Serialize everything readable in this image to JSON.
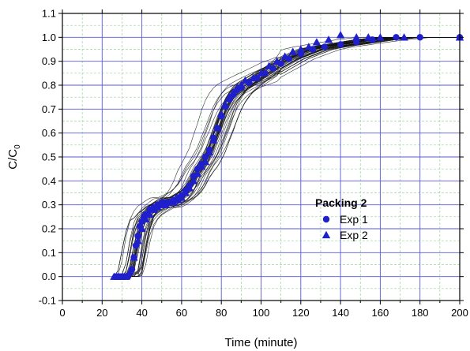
{
  "chart_data": {
    "type": "scatter",
    "title": "",
    "xlabel": "Time (minute)",
    "ylabel_main": "C/C",
    "ylabel_sub": "0",
    "xlim": [
      0,
      200
    ],
    "ylim": [
      -0.1,
      1.1
    ],
    "x_ticks": [
      "0",
      "20",
      "40",
      "60",
      "80",
      "100",
      "120",
      "140",
      "160",
      "180",
      "200"
    ],
    "y_ticks": [
      "-0.1",
      "0.0",
      "0.1",
      "0.2",
      "0.3",
      "0.4",
      "0.5",
      "0.6",
      "0.7",
      "0.8",
      "0.9",
      "1.0",
      "1.1"
    ],
    "grid": true,
    "legend_placement": "center-right",
    "legend_title": "Packing 2",
    "colors": {
      "markers": "#1f1fcc",
      "major_grid": "#5a5ad6",
      "minor_grid": "#9ecf9e",
      "simulations": "#111111"
    },
    "series": [
      {
        "name": "Exp 1",
        "marker": "circle",
        "points": [
          [
            27,
            0.0
          ],
          [
            29,
            0.0
          ],
          [
            31,
            0.0
          ],
          [
            33,
            0.0
          ],
          [
            35,
            0.03
          ],
          [
            36,
            0.08
          ],
          [
            37,
            0.13
          ],
          [
            38,
            0.17
          ],
          [
            39,
            0.21
          ],
          [
            40,
            0.23
          ],
          [
            41,
            0.25
          ],
          [
            42,
            0.26
          ],
          [
            44,
            0.28
          ],
          [
            46,
            0.29
          ],
          [
            48,
            0.3
          ],
          [
            50,
            0.31
          ],
          [
            52,
            0.31
          ],
          [
            54,
            0.31
          ],
          [
            56,
            0.32
          ],
          [
            58,
            0.33
          ],
          [
            60,
            0.34
          ],
          [
            62,
            0.36
          ],
          [
            64,
            0.38
          ],
          [
            66,
            0.42
          ],
          [
            68,
            0.45
          ],
          [
            70,
            0.47
          ],
          [
            72,
            0.5
          ],
          [
            74,
            0.53
          ],
          [
            76,
            0.58
          ],
          [
            78,
            0.62
          ],
          [
            80,
            0.67
          ],
          [
            82,
            0.71
          ],
          [
            84,
            0.74
          ],
          [
            86,
            0.76
          ],
          [
            88,
            0.78
          ],
          [
            90,
            0.79
          ],
          [
            94,
            0.81
          ],
          [
            98,
            0.83
          ],
          [
            102,
            0.85
          ],
          [
            106,
            0.87
          ],
          [
            110,
            0.89
          ],
          [
            114,
            0.91
          ],
          [
            120,
            0.93
          ],
          [
            126,
            0.95
          ],
          [
            132,
            0.96
          ],
          [
            140,
            0.97
          ],
          [
            148,
            0.98
          ],
          [
            156,
            0.99
          ],
          [
            168,
            1.0
          ],
          [
            180,
            1.0
          ],
          [
            200,
            1.0
          ]
        ]
      },
      {
        "name": "Exp 2",
        "marker": "triangle",
        "points": [
          [
            26,
            0.0
          ],
          [
            28,
            0.0
          ],
          [
            30,
            0.0
          ],
          [
            32,
            0.0
          ],
          [
            34,
            0.02
          ],
          [
            36,
            0.08
          ],
          [
            38,
            0.15
          ],
          [
            40,
            0.2
          ],
          [
            42,
            0.24
          ],
          [
            44,
            0.26
          ],
          [
            46,
            0.28
          ],
          [
            48,
            0.29
          ],
          [
            50,
            0.3
          ],
          [
            52,
            0.3
          ],
          [
            54,
            0.31
          ],
          [
            56,
            0.31
          ],
          [
            58,
            0.32
          ],
          [
            60,
            0.33
          ],
          [
            62,
            0.35
          ],
          [
            64,
            0.37
          ],
          [
            66,
            0.4
          ],
          [
            68,
            0.43
          ],
          [
            70,
            0.46
          ],
          [
            72,
            0.48
          ],
          [
            74,
            0.52
          ],
          [
            76,
            0.57
          ],
          [
            78,
            0.62
          ],
          [
            80,
            0.68
          ],
          [
            82,
            0.72
          ],
          [
            84,
            0.75
          ],
          [
            86,
            0.77
          ],
          [
            88,
            0.79
          ],
          [
            90,
            0.8
          ],
          [
            92,
            0.82
          ],
          [
            96,
            0.83
          ],
          [
            100,
            0.85
          ],
          [
            104,
            0.88
          ],
          [
            108,
            0.9
          ],
          [
            112,
            0.92
          ],
          [
            116,
            0.94
          ],
          [
            120,
            0.95
          ],
          [
            124,
            0.96
          ],
          [
            128,
            0.98
          ],
          [
            134,
            0.99
          ],
          [
            140,
            1.01
          ],
          [
            148,
            1.0
          ],
          [
            154,
            1.0
          ],
          [
            160,
            1.0
          ],
          [
            172,
            1.0
          ],
          [
            200,
            1.0
          ]
        ]
      }
    ]
  }
}
